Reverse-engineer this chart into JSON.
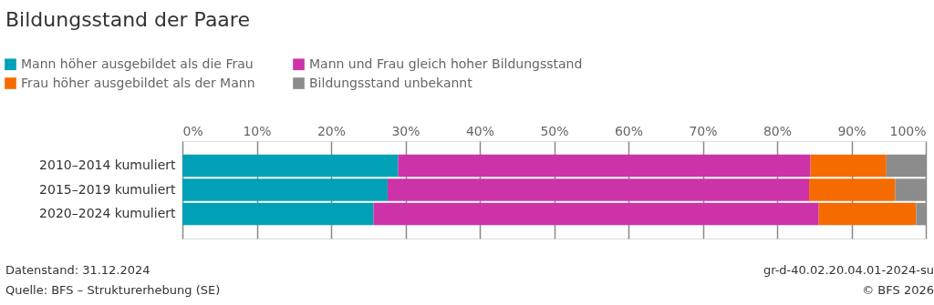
{
  "chart_data": {
    "type": "bar",
    "orientation": "horizontal",
    "stacked": true,
    "title": "Bildungsstand der Paare",
    "categories": [
      "2010–2014 kumuliert",
      "2015–2019 kumuliert",
      "2020–2024 kumuliert"
    ],
    "series": [
      {
        "name": "Mann höher ausgebildet als die Frau",
        "color": "#00a1b7",
        "values": [
          29.0,
          27.6,
          25.7
        ]
      },
      {
        "name": "Mann und Frau gleich hoher Bildungsstand",
        "color": "#cc33a8",
        "values": [
          55.5,
          56.7,
          59.9
        ]
      },
      {
        "name": "Frau höher ausgebildet als der Mann",
        "color": "#f56b00",
        "values": [
          10.2,
          11.6,
          13.1
        ]
      },
      {
        "name": "Bildungsstand unbekannt",
        "color": "#8c8c8c",
        "values": [
          5.3,
          4.1,
          1.3
        ]
      }
    ],
    "xlim": [
      0,
      100
    ],
    "xticks": [
      {
        "value": 0,
        "label": "0%"
      },
      {
        "value": 10,
        "label": "10%"
      },
      {
        "value": 20,
        "label": "20%"
      },
      {
        "value": 30,
        "label": "30%"
      },
      {
        "value": 40,
        "label": "40%"
      },
      {
        "value": 50,
        "label": "50%"
      },
      {
        "value": 60,
        "label": "60%"
      },
      {
        "value": 70,
        "label": "70%"
      },
      {
        "value": 80,
        "label": "80%"
      },
      {
        "value": 90,
        "label": "90%"
      },
      {
        "value": 100,
        "label": "100%"
      }
    ],
    "grid": "x",
    "legend": "top",
    "annotations": [
      "Datenstand: 31.12.2024",
      "Quelle: BFS – Strukturerhebung (SE)",
      "gr-d-40.02.20.04.01-2024-su",
      "© BFS 2026"
    ]
  }
}
